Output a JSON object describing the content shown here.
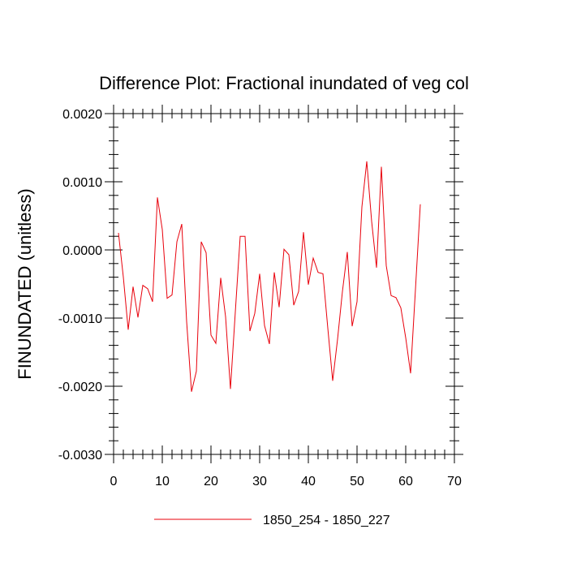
{
  "chart_data": {
    "type": "line",
    "title": "Difference Plot: Fractional inundated of veg col",
    "xlabel": "",
    "ylabel": "FINUNDATED  (unitless)",
    "xlim": [
      0,
      70
    ],
    "ylim": [
      -0.003,
      0.002
    ],
    "x_ticks": [
      0,
      10,
      20,
      30,
      40,
      50,
      60,
      70
    ],
    "x_tick_labels": [
      "0",
      "10",
      "20",
      "30",
      "40",
      "50",
      "60",
      "70"
    ],
    "y_ticks": [
      -0.003,
      -0.002,
      -0.001,
      0.0,
      0.001,
      0.002
    ],
    "y_tick_labels": [
      "-0.0030",
      "-0.0020",
      "-0.0010",
      "0.0000",
      "0.0010",
      "0.0020"
    ],
    "x_minor_step": 2,
    "y_minor_step": 0.0002,
    "grid": false,
    "legend_position": "bottom",
    "series": [
      {
        "name": "1850_254 - 1850_227",
        "color": "#e8000b",
        "x": [
          1,
          2,
          3,
          4,
          5,
          6,
          7,
          8,
          9,
          10,
          11,
          12,
          13,
          14,
          15,
          16,
          17,
          18,
          19,
          20,
          21,
          22,
          23,
          24,
          25,
          26,
          27,
          28,
          29,
          30,
          31,
          32,
          33,
          34,
          35,
          36,
          37,
          38,
          39,
          40,
          41,
          42,
          43,
          44,
          45,
          46,
          47,
          48,
          49,
          50,
          51,
          52,
          53,
          54,
          55,
          56,
          57,
          58,
          59,
          60,
          61,
          62,
          63
        ],
        "values": [
          0.00025,
          -0.0004,
          -0.00117,
          -0.00054,
          -0.00099,
          -0.00052,
          -0.00057,
          -0.00076,
          0.00077,
          0.0003,
          -0.00071,
          -0.00066,
          0.00012,
          0.00038,
          -0.00105,
          -0.00208,
          -0.00178,
          0.00012,
          -4e-05,
          -0.00125,
          -0.00137,
          -0.00041,
          -0.00098,
          -0.00204,
          -0.00091,
          0.0002,
          0.0002,
          -0.00119,
          -0.00093,
          -0.00035,
          -0.00111,
          -0.00138,
          -0.00033,
          -0.00084,
          1e-05,
          -7e-05,
          -0.00081,
          -0.00061,
          0.00026,
          -0.00051,
          -0.00012,
          -0.00033,
          -0.00035,
          -0.00115,
          -0.00192,
          -0.00131,
          -0.00061,
          -3e-05,
          -0.00112,
          -0.00076,
          0.00063,
          0.0013,
          0.00042,
          -0.00026,
          0.00122,
          -0.00023,
          -0.00067,
          -0.0007,
          -0.00085,
          -0.00129,
          -0.00181,
          -0.00058,
          0.00067
        ]
      }
    ]
  }
}
